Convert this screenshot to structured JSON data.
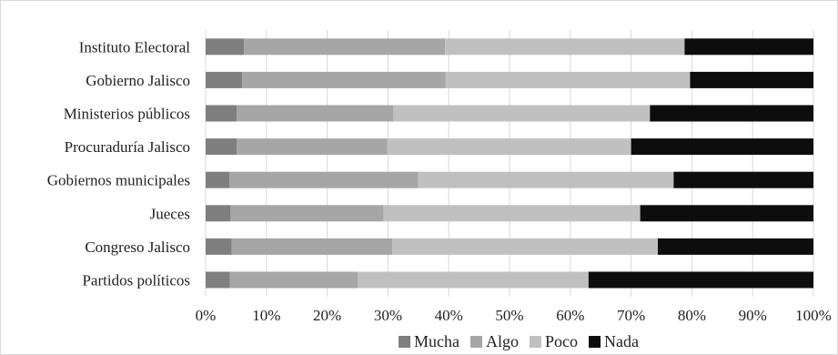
{
  "chart_data": {
    "type": "bar",
    "orientation": "horizontal",
    "stacked": "percent",
    "title": "",
    "xlabel": "",
    "ylabel": "",
    "xlim": [
      0,
      100
    ],
    "x_ticks": [
      "0%",
      "10%",
      "20%",
      "30%",
      "40%",
      "50%",
      "60%",
      "70%",
      "80%",
      "90%",
      "100%"
    ],
    "grid": "vertical",
    "legend_position": "bottom",
    "categories": [
      "Instituto Electoral",
      "Gobierno Jalisco",
      "Ministerios públicos",
      "Procuraduría Jalisco",
      "Gobiernos municipales",
      "Jueces",
      "Congreso Jalisco",
      "Partidos políticos"
    ],
    "series": [
      {
        "name": "Mucha",
        "color": "#7f7f7f",
        "values": [
          6.3,
          6.0,
          5.1,
          5.1,
          3.9,
          4.1,
          4.3,
          4.0
        ]
      },
      {
        "name": "Algo",
        "color": "#a6a6a6",
        "values": [
          33.1,
          33.5,
          25.8,
          24.8,
          31.1,
          25.2,
          26.4,
          21.0
        ]
      },
      {
        "name": "Poco",
        "color": "#c0c0c0",
        "values": [
          39.4,
          40.2,
          42.2,
          40.1,
          42.0,
          42.2,
          43.7,
          38.0
        ]
      },
      {
        "name": "Nada",
        "color": "#0d0d0d",
        "values": [
          21.2,
          20.3,
          26.9,
          30.0,
          23.0,
          28.5,
          25.6,
          37.0
        ]
      }
    ]
  }
}
